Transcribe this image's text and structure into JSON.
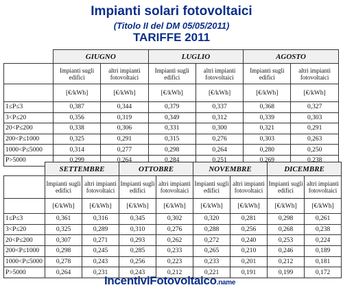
{
  "header": {
    "title": "Impianti solari fotovoltaici",
    "subtitle": "(Titolo II del DM 05/05/2011)",
    "tariffs": "TARIFFE 2011"
  },
  "col_headers": {
    "buildings": "Impianti sugli edifici",
    "others": "altri impianti fotovoltaici",
    "unit": "[€/kWh]"
  },
  "row_labels": [
    "1≤P≤3",
    "3<P≤20",
    "20<P≤200",
    "200<P≤1000",
    "1000<P≤5000",
    "P>5000"
  ],
  "tables": [
    {
      "months": [
        {
          "name": "GIUGNO",
          "buildings": [
            "0,387",
            "0,356",
            "0,338",
            "0,325",
            "0,314",
            "0,299"
          ],
          "others": [
            "0,344",
            "0,319",
            "0,306",
            "0,291",
            "0,277",
            "0,264"
          ]
        },
        {
          "name": "LUGLIO",
          "buildings": [
            "0,379",
            "0,349",
            "0,331",
            "0,315",
            "0,298",
            "0,284"
          ],
          "others": [
            "0,337",
            "0,312",
            "0,300",
            "0,276",
            "0,264",
            "0,251"
          ]
        },
        {
          "name": "AGOSTO",
          "buildings": [
            "0,368",
            "0,339",
            "0,321",
            "0,303",
            "0,280",
            "0,269"
          ],
          "others": [
            "0,327",
            "0,303",
            "0,291",
            "0,263",
            "0,250",
            "0,238"
          ]
        }
      ]
    },
    {
      "months": [
        {
          "name": "SETTEMBRE",
          "buildings": [
            "0,361",
            "0,325",
            "0,307",
            "0,298",
            "0,278",
            "0,264"
          ],
          "others": [
            "0,316",
            "0,289",
            "0,271",
            "0,245",
            "0,243",
            "0,231"
          ]
        },
        {
          "name": "OTTOBRE",
          "buildings": [
            "0,345",
            "0,310",
            "0,293",
            "0,285",
            "0,256",
            "0,243"
          ],
          "others": [
            "0,302",
            "0,276",
            "0,262",
            "0,233",
            "0,223",
            "0,212"
          ]
        },
        {
          "name": "NOVEMBRE",
          "buildings": [
            "0,320",
            "0,288",
            "0,272",
            "0,265",
            "0,233",
            "0,221"
          ],
          "others": [
            "0,281",
            "0,256",
            "0,240",
            "0,210",
            "0,201",
            "0,191"
          ]
        },
        {
          "name": "DICEMBRE",
          "buildings": [
            "0,298",
            "0,268",
            "0,253",
            "0,246",
            "0,212",
            "0,199"
          ],
          "others": [
            "0,261",
            "0,238",
            "0,224",
            "0,189",
            "0,181",
            "0,172"
          ]
        }
      ]
    }
  ],
  "brand": {
    "name": "IncentiviFotovoltaico",
    "suffix": ".name"
  }
}
